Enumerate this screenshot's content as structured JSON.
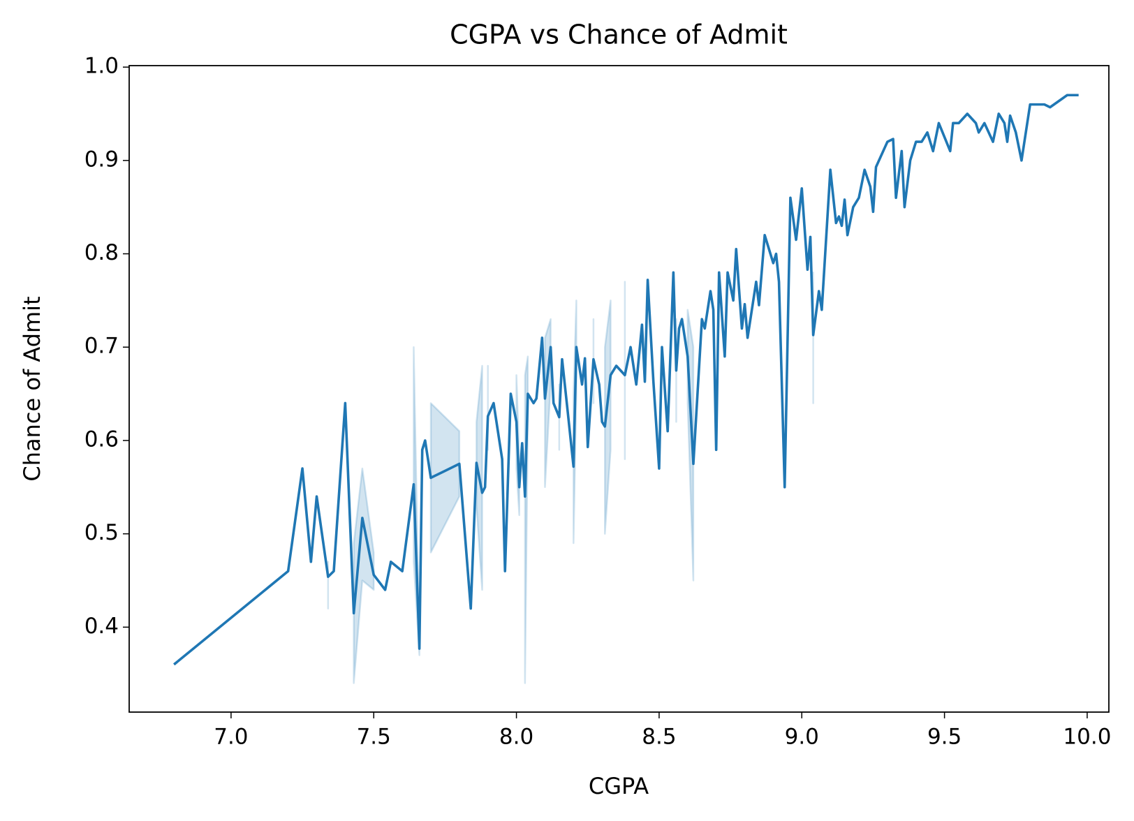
{
  "chart_data": {
    "type": "line",
    "title": "CGPA vs Chance of Admit",
    "x_label": "CGPA",
    "y_label": "Chance of Admit",
    "x": [
      6.8,
      7.2,
      7.25,
      7.28,
      7.3,
      7.34,
      7.36,
      7.4,
      7.43,
      7.46,
      7.5,
      7.54,
      7.56,
      7.6,
      7.64,
      7.66,
      7.67,
      7.68,
      7.7,
      7.8,
      7.84,
      7.86,
      7.88,
      7.89,
      7.9,
      7.92,
      7.95,
      7.96,
      7.98,
      8.0,
      8.01,
      8.02,
      8.03,
      8.04,
      8.06,
      8.07,
      8.09,
      8.1,
      8.12,
      8.13,
      8.15,
      8.16,
      8.18,
      8.2,
      8.21,
      8.23,
      8.24,
      8.25,
      8.27,
      8.29,
      8.3,
      8.31,
      8.33,
      8.35,
      8.38,
      8.4,
      8.42,
      8.44,
      8.45,
      8.46,
      8.48,
      8.5,
      8.51,
      8.53,
      8.55,
      8.56,
      8.57,
      8.58,
      8.6,
      8.62,
      8.65,
      8.66,
      8.68,
      8.69,
      8.7,
      8.71,
      8.73,
      8.74,
      8.76,
      8.77,
      8.79,
      8.8,
      8.81,
      8.84,
      8.85,
      8.87,
      8.9,
      8.91,
      8.92,
      8.94,
      8.96,
      8.98,
      9.0,
      9.02,
      9.03,
      9.04,
      9.06,
      9.07,
      9.1,
      9.12,
      9.13,
      9.14,
      9.15,
      9.16,
      9.18,
      9.2,
      9.22,
      9.24,
      9.25,
      9.26,
      9.3,
      9.32,
      9.33,
      9.35,
      9.36,
      9.38,
      9.4,
      9.42,
      9.44,
      9.46,
      9.48,
      9.52,
      9.53,
      9.55,
      9.58,
      9.61,
      9.62,
      9.64,
      9.67,
      9.69,
      9.71,
      9.72,
      9.73,
      9.75,
      9.77,
      9.8,
      9.85,
      9.87,
      9.93,
      9.97
    ],
    "series": [
      {
        "color": "#1f77b4",
        "values": [
          0.36,
          0.46,
          0.57,
          0.47,
          0.54,
          0.454,
          0.46,
          0.64,
          0.415,
          0.517,
          0.456,
          0.44,
          0.47,
          0.46,
          0.553,
          0.377,
          0.59,
          0.6,
          0.56,
          0.575,
          0.42,
          0.576,
          0.544,
          0.55,
          0.626,
          0.64,
          0.58,
          0.46,
          0.65,
          0.62,
          0.55,
          0.597,
          0.54,
          0.65,
          0.64,
          0.645,
          0.71,
          0.645,
          0.7,
          0.64,
          0.625,
          0.687,
          0.63,
          0.572,
          0.7,
          0.66,
          0.688,
          0.593,
          0.687,
          0.66,
          0.62,
          0.615,
          0.67,
          0.68,
          0.67,
          0.7,
          0.66,
          0.724,
          0.663,
          0.772,
          0.663,
          0.57,
          0.7,
          0.61,
          0.78,
          0.675,
          0.72,
          0.73,
          0.69,
          0.575,
          0.73,
          0.72,
          0.76,
          0.74,
          0.59,
          0.78,
          0.69,
          0.78,
          0.75,
          0.805,
          0.72,
          0.746,
          0.71,
          0.77,
          0.745,
          0.82,
          0.79,
          0.8,
          0.77,
          0.55,
          0.86,
          0.815,
          0.87,
          0.783,
          0.818,
          0.713,
          0.76,
          0.74,
          0.89,
          0.833,
          0.84,
          0.83,
          0.858,
          0.82,
          0.85,
          0.86,
          0.89,
          0.872,
          0.845,
          0.893,
          0.92,
          0.923,
          0.86,
          0.91,
          0.85,
          0.9,
          0.92,
          0.92,
          0.93,
          0.91,
          0.94,
          0.91,
          0.94,
          0.94,
          0.95,
          0.94,
          0.93,
          0.94,
          0.92,
          0.95,
          0.94,
          0.92,
          0.948,
          0.93,
          0.9,
          0.96,
          0.96,
          0.957,
          0.97,
          0.97
        ],
        "ci_lower": [
          null,
          null,
          null,
          null,
          null,
          0.42,
          null,
          null,
          0.34,
          0.45,
          0.44,
          null,
          null,
          null,
          0.47,
          0.37,
          null,
          null,
          0.48,
          0.54,
          null,
          0.53,
          0.44,
          null,
          0.59,
          null,
          null,
          null,
          null,
          0.57,
          0.52,
          null,
          0.34,
          0.62,
          null,
          null,
          null,
          0.55,
          0.66,
          null,
          0.59,
          null,
          null,
          0.49,
          0.65,
          null,
          null,
          null,
          0.64,
          null,
          null,
          0.5,
          0.59,
          null,
          0.58,
          null,
          null,
          null,
          null,
          null,
          null,
          null,
          null,
          null,
          null,
          0.62,
          null,
          null,
          0.64,
          0.45,
          null,
          null,
          null,
          null,
          null,
          null,
          null,
          null,
          null,
          null,
          null,
          null,
          null,
          null,
          null,
          null,
          null,
          null,
          null,
          null,
          null,
          null,
          null,
          null,
          null,
          0.64,
          null,
          null,
          null,
          null,
          null,
          null,
          null,
          null,
          null,
          null,
          null,
          null,
          null,
          null,
          null,
          null,
          null,
          null,
          null,
          null,
          null,
          null,
          null,
          null,
          null,
          null,
          null,
          null,
          null,
          null,
          null,
          null,
          null,
          null,
          null,
          null,
          null,
          null,
          null,
          null,
          null,
          null,
          null,
          null
        ],
        "ci_upper": [
          null,
          null,
          null,
          null,
          null,
          0.47,
          null,
          null,
          0.49,
          0.57,
          0.48,
          null,
          null,
          null,
          0.7,
          0.38,
          null,
          null,
          0.64,
          0.61,
          null,
          0.62,
          0.68,
          null,
          0.68,
          null,
          null,
          null,
          null,
          0.67,
          0.58,
          null,
          0.67,
          0.69,
          null,
          null,
          null,
          0.71,
          0.73,
          null,
          0.66,
          null,
          null,
          0.65,
          0.75,
          null,
          null,
          null,
          0.73,
          null,
          null,
          0.7,
          0.75,
          null,
          0.77,
          null,
          null,
          null,
          null,
          null,
          null,
          null,
          null,
          null,
          null,
          0.73,
          null,
          null,
          0.74,
          0.7,
          null,
          null,
          null,
          null,
          null,
          null,
          null,
          null,
          null,
          null,
          null,
          null,
          null,
          null,
          null,
          null,
          null,
          null,
          null,
          null,
          null,
          null,
          null,
          null,
          null,
          0.78,
          null,
          null,
          null,
          null,
          null,
          null,
          null,
          null,
          null,
          null,
          null,
          null,
          null,
          null,
          null,
          null,
          null,
          null,
          null,
          null,
          null,
          null,
          null,
          null,
          null,
          null,
          null,
          null,
          null,
          null,
          null,
          null,
          null,
          null,
          null,
          null,
          null,
          null,
          null,
          null,
          null,
          null,
          null,
          null
        ]
      }
    ],
    "xlim": [
      6.643,
      10.076
    ],
    "ylim": [
      0.309,
      1.0016
    ],
    "xticks": [
      {
        "value": 7,
        "label": "7.0"
      },
      7.5,
      {
        "value": 8,
        "label": "8.0"
      },
      8.5,
      {
        "value": 9,
        "label": "9.0"
      },
      9.5,
      {
        "value": 10,
        "label": "10.0"
      }
    ],
    "yticks": [
      0.4,
      0.5,
      0.6,
      0.7,
      0.8,
      0.9,
      {
        "value": 1,
        "label": "1.0"
      }
    ],
    "grid": false
  }
}
